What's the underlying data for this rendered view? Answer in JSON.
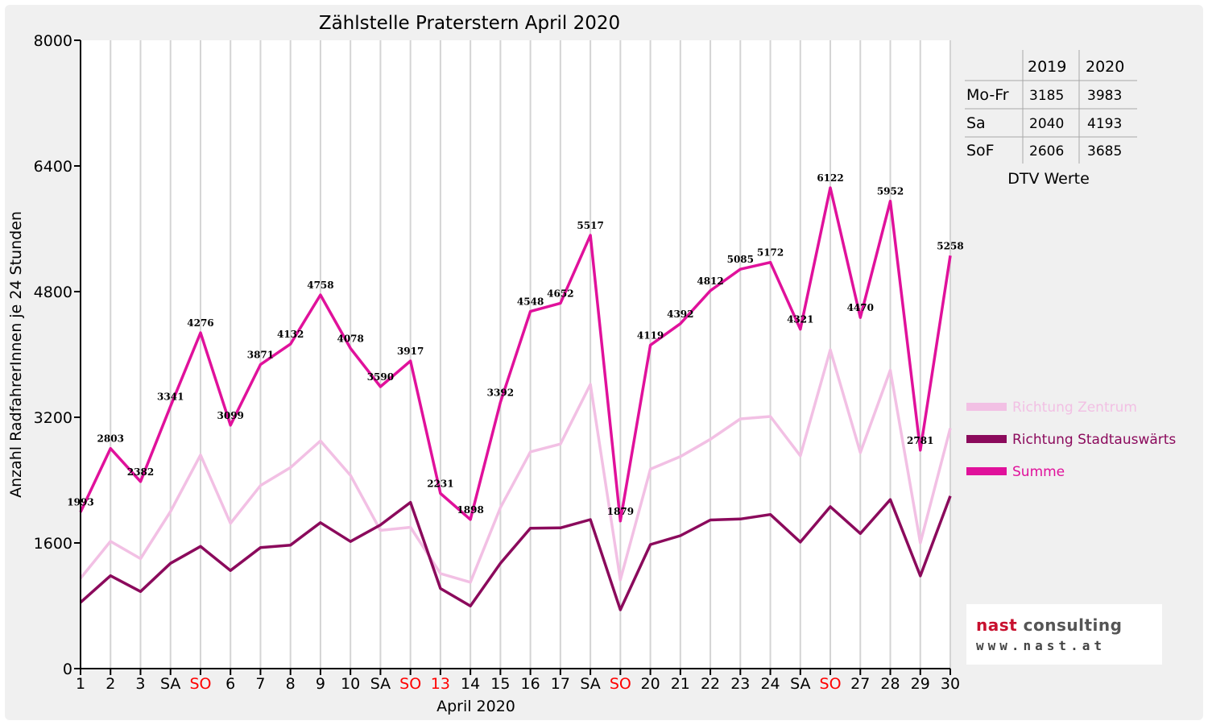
{
  "chart_data": {
    "type": "line",
    "title": "Zählstelle Praterstern April 2020",
    "xlabel": "April 2020",
    "ylabel": "Anzahl RadfahrerInnen je 24 Stunden",
    "ylim": [
      0,
      8000
    ],
    "yticks": [
      "0",
      "1600",
      "3200",
      "4800",
      "6400",
      "8000"
    ],
    "grid": "vertical",
    "legend_position": "right",
    "categories": [
      "1",
      "2",
      "3",
      "SA",
      "SO",
      "6",
      "7",
      "8",
      "9",
      "10",
      "SA",
      "SO",
      "13",
      "14",
      "15",
      "16",
      "17",
      "SA",
      "SO",
      "20",
      "21",
      "22",
      "23",
      "24",
      "SA",
      "SO",
      "27",
      "28",
      "29",
      "30"
    ],
    "highlight_categories": [
      4,
      11,
      12,
      18,
      25
    ],
    "highlight_color": "#ff0000",
    "series": [
      {
        "name": "Richtung Zentrum",
        "color": "#f2c0e4",
        "values": [
          1150,
          1620,
          1400,
          2000,
          2720,
          1850,
          2330,
          2560,
          2900,
          2460,
          1760,
          1800,
          1210,
          1100,
          2050,
          2760,
          2860,
          3620,
          1130,
          2540,
          2700,
          2920,
          3180,
          3210,
          2710,
          4060,
          2750,
          3800,
          1600,
          3060
        ]
      },
      {
        "name": "Richtung Stadtauswärts",
        "color": "#8b0a5c",
        "values": [
          843,
          1183,
          982,
          1341,
          1556,
          1249,
          1541,
          1572,
          1858,
          1618,
          1830,
          2117,
          1021,
          798,
          1342,
          1788,
          1792,
          1897,
          749,
          1579,
          1692,
          1892,
          1905,
          1962,
          1611,
          2062,
          1720,
          2152,
          1181,
          2198
        ]
      },
      {
        "name": "Summe",
        "color": "#e0119b",
        "values": [
          1993,
          2803,
          2382,
          3341,
          4276,
          3099,
          3871,
          4132,
          4758,
          4078,
          3590,
          3917,
          2231,
          1898,
          3392,
          4548,
          4652,
          5517,
          1879,
          4119,
          4392,
          4812,
          5085,
          5172,
          4321,
          6122,
          4470,
          5952,
          2781,
          5258
        ],
        "labels": [
          "1993",
          "2803",
          "2382",
          "3341",
          "4276",
          "3099",
          "3871",
          "4132",
          "4758",
          "4078",
          "3590",
          "3917",
          "2231",
          "1898",
          "3392",
          "4548",
          "4652",
          "5517",
          "1879",
          "4119",
          "4392",
          "4812",
          "5085",
          "5172",
          "4321",
          "6122",
          "4470",
          "5952",
          "2781",
          "5258"
        ]
      }
    ],
    "table": {
      "caption": "DTV Werte",
      "columns": [
        "",
        "2019",
        "2020"
      ],
      "rows": [
        {
          "label": "Mo-Fr",
          "v2019": "3185",
          "v2020": "3983"
        },
        {
          "label": "Sa",
          "v2019": "2040",
          "v2020": "4193"
        },
        {
          "label": "SoF",
          "v2019": "2606",
          "v2020": "3685"
        }
      ]
    }
  },
  "logo": {
    "name_part1": "nast",
    "name_part2": " consulting",
    "url": "www.nast.at"
  }
}
